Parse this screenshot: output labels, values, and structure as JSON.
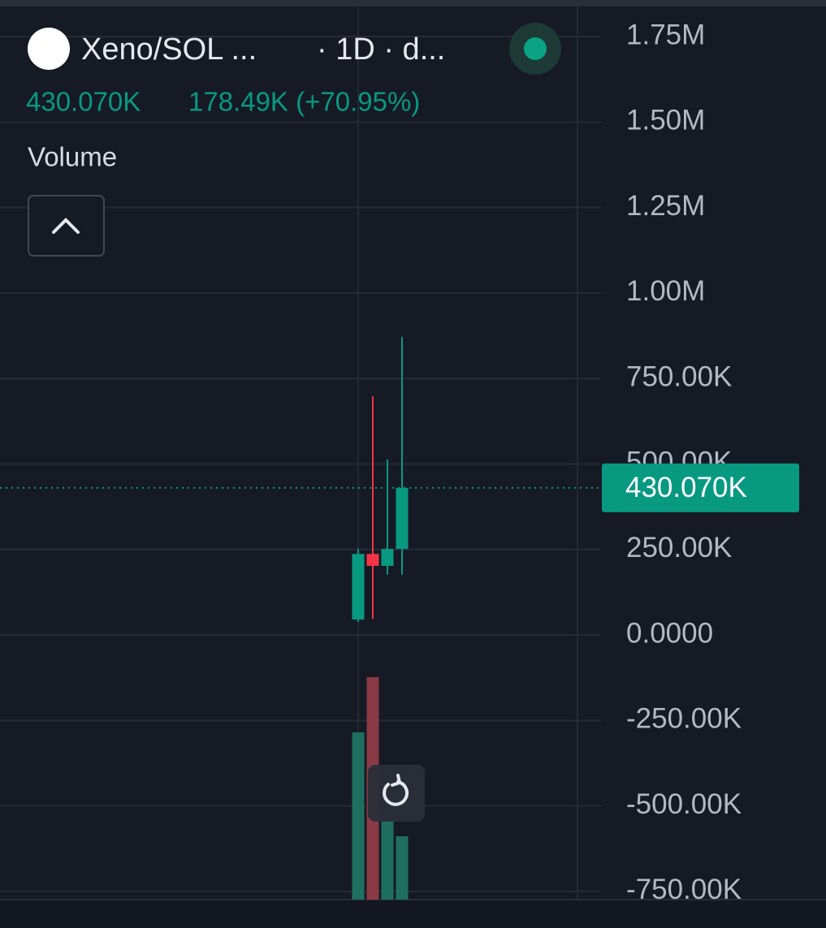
{
  "chart_data": {
    "type": "candlestick",
    "title": "Xeno/SOL ...",
    "interval": "· 1D · d...",
    "price_text": "430.070K",
    "change_text": "178.49K (+70.95%)",
    "indicator": "Volume",
    "open": [
      45000,
      237000,
      202000,
      251580
    ],
    "high": [
      252000,
      698000,
      513000,
      872000
    ],
    "low": [
      38000,
      47000,
      176000,
      176000
    ],
    "close": [
      237000,
      202000,
      251580,
      430070
    ],
    "volume": [
      206,
      274,
      98,
      78
    ],
    "up_color": "#089981",
    "down_color": "#f23645",
    "volume_up_color": "#1f6f61",
    "volume_down_color": "#8a3a45",
    "last_price": {
      "value": 430070,
      "label": "430.070K"
    },
    "ylim": [
      -774000,
      1857000
    ],
    "yticks": [
      {
        "value": 1750000,
        "label": "1.75M"
      },
      {
        "value": 1500000,
        "label": "1.50M"
      },
      {
        "value": 1250000,
        "label": "1.25M"
      },
      {
        "value": 1000000,
        "label": "1.00M"
      },
      {
        "value": 750000,
        "label": "750.00K"
      },
      {
        "value": 500000,
        "label": "500.00K"
      },
      {
        "value": 250000,
        "label": "250.00K"
      },
      {
        "value": 0,
        "label": "0.0000"
      },
      {
        "value": -250000,
        "label": "-250.00K"
      },
      {
        "value": -500000,
        "label": "-500.00K"
      },
      {
        "value": -750000,
        "label": "-750.00K"
      }
    ],
    "grid": true
  }
}
